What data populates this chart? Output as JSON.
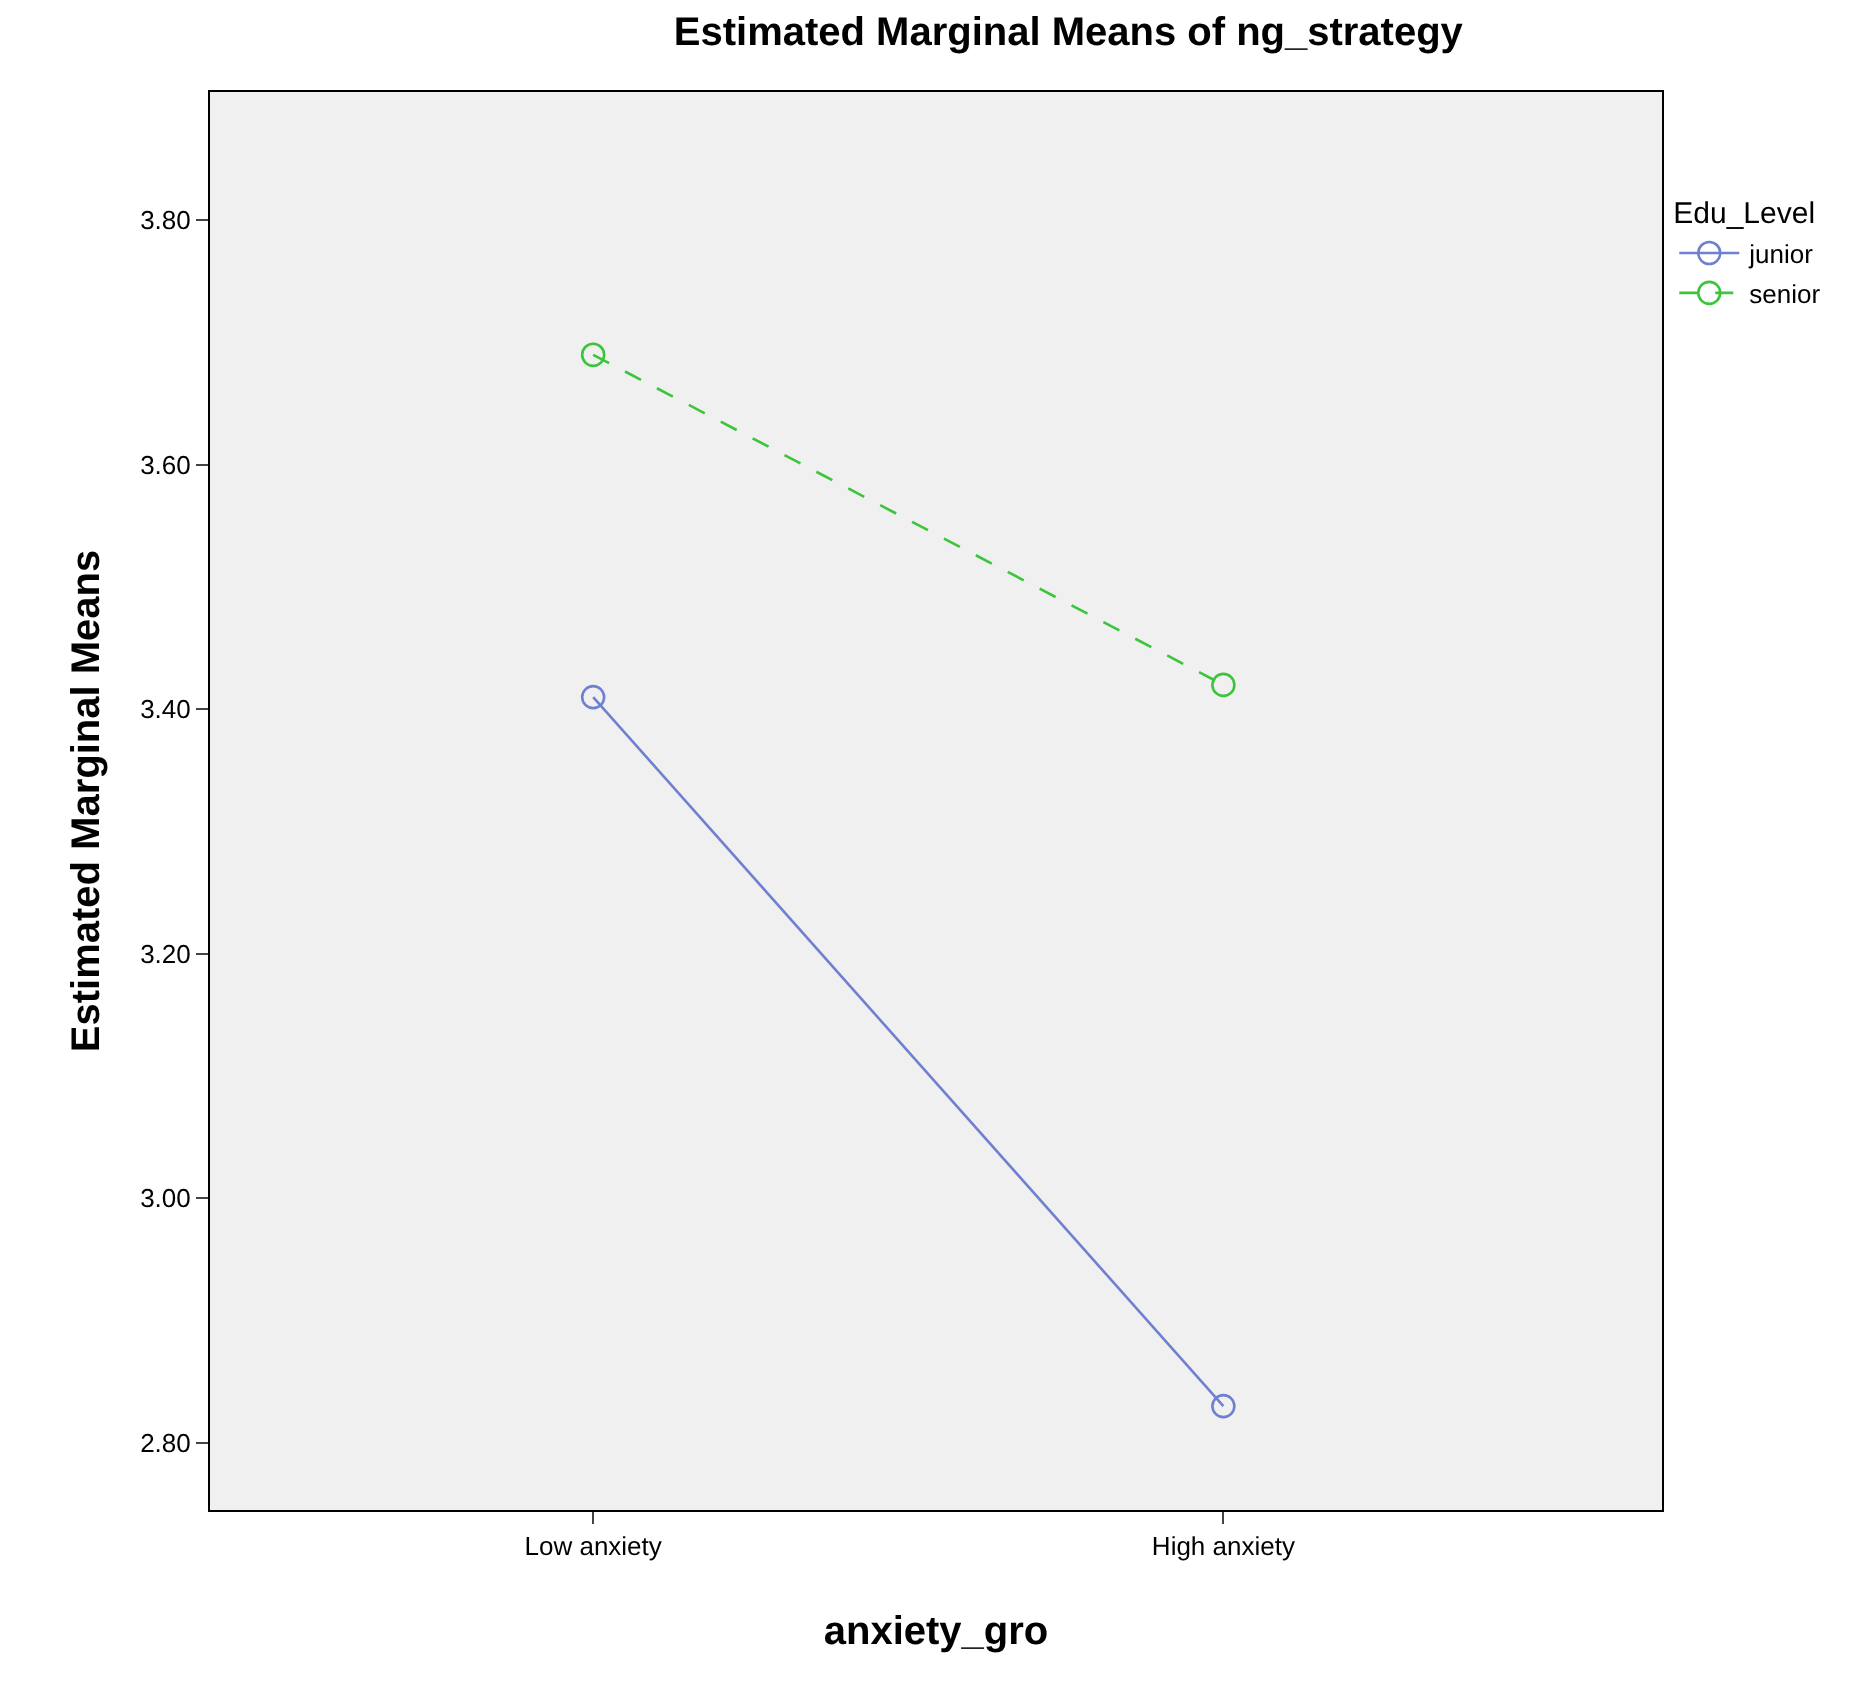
{
  "chart_data": {
    "type": "line",
    "title": "Estimated Marginal Means of ng_strategy",
    "xlabel": "anxiety_gro",
    "ylabel": "Estimated Marginal Means",
    "legend_title": "Edu_Level",
    "categories": [
      "Low anxiety",
      "High anxiety"
    ],
    "series": [
      {
        "name": "junior",
        "color": "#6f80d0",
        "values": [
          3.41,
          2.83
        ],
        "line_style": "solid"
      },
      {
        "name": "senior",
        "color": "#3cc43c",
        "values": [
          3.69,
          3.42
        ],
        "line_style": "dashed"
      }
    ],
    "ylim": [
      2.745,
      3.905
    ],
    "yticks": [
      {
        "value": 2.8,
        "label": "2.80"
      },
      {
        "value": 3.0,
        "label": "3.00"
      },
      {
        "value": 3.2,
        "label": "3.20"
      },
      {
        "value": 3.4,
        "label": "3.40"
      },
      {
        "value": 3.6,
        "label": "3.60"
      },
      {
        "value": 3.8,
        "label": "3.80"
      }
    ],
    "marker": "circle",
    "grid": false,
    "legend": "top right"
  }
}
